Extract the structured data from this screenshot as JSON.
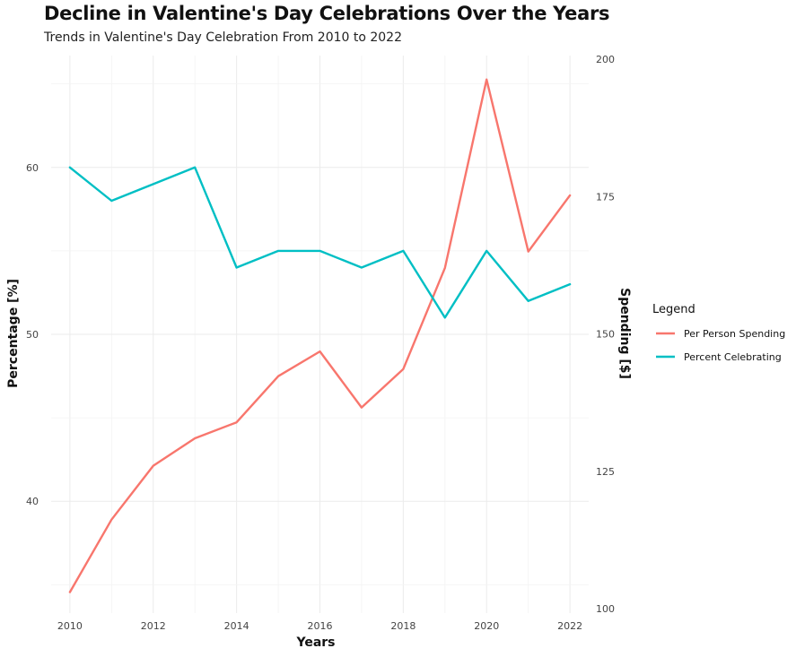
{
  "chart_data": {
    "type": "line",
    "title": "Decline in Valentine's Day Celebrations Over the Years",
    "subtitle": "Trends in Valentine's Day Celebration From 2010 to 2022",
    "xlabel": "Years",
    "ylabel_left": "Percentage [%]",
    "ylabel_right": "Spending [$]",
    "x": [
      2010,
      2011,
      2012,
      2013,
      2014,
      2015,
      2016,
      2017,
      2018,
      2019,
      2020,
      2021,
      2022
    ],
    "x_ticks": [
      2010,
      2012,
      2014,
      2016,
      2018,
      2020,
      2022
    ],
    "y_left_ticks": [
      40,
      50,
      60
    ],
    "y_left_range": [
      33.3,
      66.7
    ],
    "y_right_ticks": [
      100,
      125,
      150,
      175,
      200
    ],
    "y_right_range": [
      100,
      200
    ],
    "grid": true,
    "legend": {
      "title": "Legend",
      "position": "right"
    },
    "series": [
      {
        "name": "Per Person Spending",
        "axis": "right",
        "color": "#F8766D",
        "values": [
          103.0,
          116.2,
          126.0,
          131.0,
          133.9,
          142.3,
          146.8,
          136.6,
          143.6,
          162.0,
          196.3,
          165.0,
          175.2
        ]
      },
      {
        "name": "Percent Celebrating",
        "axis": "left",
        "color": "#00BFC4",
        "values": [
          60,
          58,
          59,
          60,
          54,
          55,
          55,
          54,
          55,
          51,
          55,
          52,
          53
        ]
      }
    ]
  }
}
